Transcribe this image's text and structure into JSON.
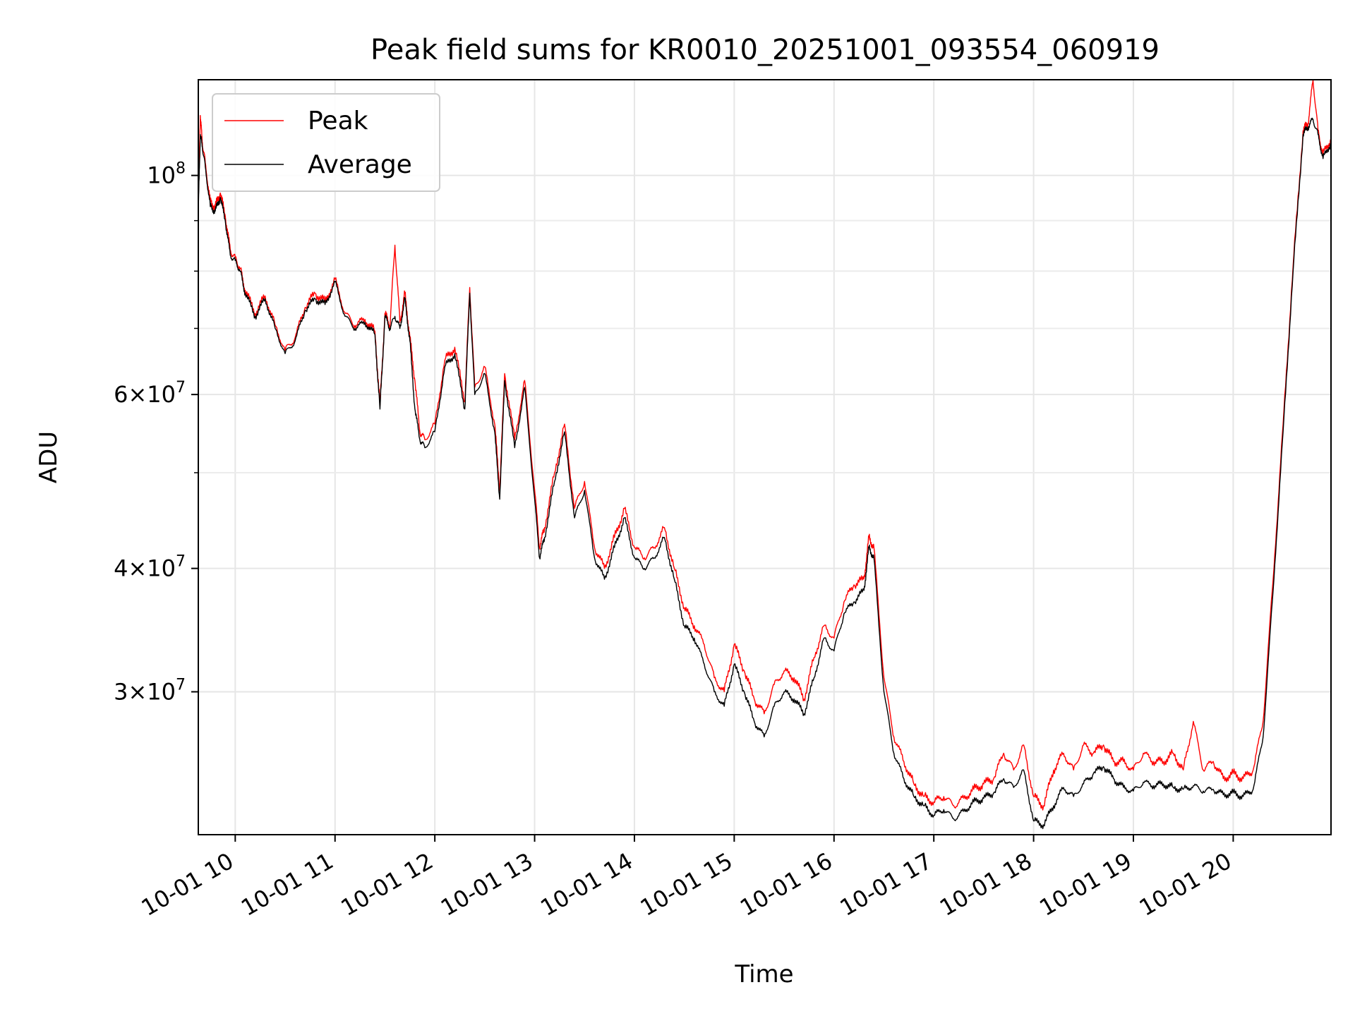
{
  "chart_data": {
    "type": "line",
    "title": "Peak field sums for KR0010_20251001_093554_060919",
    "xlabel": "Time",
    "ylabel": "ADU",
    "yscale": "log",
    "ylim": [
      21500000,
      125000000
    ],
    "xlim": [
      9.63,
      20.98
    ],
    "grid": true,
    "legend_position": "top-left",
    "x_ticks": [
      {
        "value": 10,
        "label": "10-01 10"
      },
      {
        "value": 11,
        "label": "10-01 11"
      },
      {
        "value": 12,
        "label": "10-01 12"
      },
      {
        "value": 13,
        "label": "10-01 13"
      },
      {
        "value": 14,
        "label": "10-01 14"
      },
      {
        "value": 15,
        "label": "10-01 15"
      },
      {
        "value": 16,
        "label": "10-01 16"
      },
      {
        "value": 17,
        "label": "10-01 17"
      },
      {
        "value": 18,
        "label": "10-01 18"
      },
      {
        "value": 19,
        "label": "10-01 19"
      },
      {
        "value": 20,
        "label": "10-01 20"
      }
    ],
    "y_ticks": [
      {
        "value": 30000000,
        "mant": "3",
        "exp": "7"
      },
      {
        "value": 40000000,
        "mant": "4",
        "exp": "7"
      },
      {
        "value": 60000000,
        "mant": "6",
        "exp": "7"
      },
      {
        "value": 100000000,
        "mant": "",
        "exp": "8"
      }
    ],
    "y_minor_ticks": [
      50000000,
      70000000,
      80000000,
      90000000
    ],
    "series": [
      {
        "name": "Peak",
        "color": "#ff0000"
      },
      {
        "name": "Average",
        "color": "#000000"
      }
    ],
    "x": [
      9.63,
      9.65,
      9.67,
      9.7,
      9.75,
      9.8,
      9.85,
      9.9,
      9.95,
      10.0,
      10.05,
      10.1,
      10.2,
      10.3,
      10.4,
      10.5,
      10.6,
      10.7,
      10.8,
      10.9,
      11.0,
      11.1,
      11.2,
      11.3,
      11.4,
      11.45,
      11.5,
      11.55,
      11.6,
      11.65,
      11.7,
      11.75,
      11.8,
      11.85,
      11.9,
      12.0,
      12.1,
      12.2,
      12.3,
      12.35,
      12.4,
      12.5,
      12.6,
      12.65,
      12.7,
      12.8,
      12.9,
      13.0,
      13.05,
      13.1,
      13.2,
      13.3,
      13.4,
      13.5,
      13.6,
      13.7,
      13.8,
      13.9,
      14.0,
      14.1,
      14.2,
      14.3,
      14.4,
      14.5,
      14.6,
      14.7,
      14.8,
      14.9,
      15.0,
      15.1,
      15.2,
      15.3,
      15.4,
      15.5,
      15.6,
      15.7,
      15.8,
      15.9,
      16.0,
      16.1,
      16.2,
      16.3,
      16.35,
      16.4,
      16.5,
      16.6,
      16.7,
      16.8,
      16.9,
      17.0,
      17.1,
      17.2,
      17.3,
      17.4,
      17.5,
      17.6,
      17.7,
      17.8,
      17.9,
      18.0,
      18.1,
      18.2,
      18.3,
      18.4,
      18.5,
      18.6,
      18.7,
      18.8,
      18.9,
      19.0,
      19.1,
      19.2,
      19.3,
      19.4,
      19.5,
      19.6,
      19.7,
      19.8,
      19.9,
      20.0,
      20.1,
      20.2,
      20.3,
      20.4,
      20.5,
      20.6,
      20.7,
      20.75,
      20.8,
      20.85,
      20.9,
      20.98
    ],
    "average": [
      92000000,
      110000000,
      107000000,
      102000000,
      93000000,
      92000000,
      95000000,
      90000000,
      83000000,
      82000000,
      80000000,
      76000000,
      72000000,
      75000000,
      70000000,
      66000000,
      68000000,
      73000000,
      75000000,
      74000000,
      78000000,
      72000000,
      70000000,
      71000000,
      69000000,
      58000000,
      72000000,
      70000000,
      72000000,
      70000000,
      75000000,
      68000000,
      58000000,
      54000000,
      53000000,
      55000000,
      64000000,
      66000000,
      58000000,
      76000000,
      60000000,
      63000000,
      55000000,
      47000000,
      62000000,
      53000000,
      61000000,
      47000000,
      41000000,
      43000000,
      49000000,
      55000000,
      45000000,
      48000000,
      41000000,
      39000000,
      42000000,
      45000000,
      41000000,
      40000000,
      41000000,
      43000000,
      39000000,
      35000000,
      34000000,
      32000000,
      30000000,
      29000000,
      32000000,
      30000000,
      28000000,
      27000000,
      29000000,
      30000000,
      29500000,
      28500000,
      31000000,
      34000000,
      33000000,
      36000000,
      37000000,
      38000000,
      42000000,
      41000000,
      30000000,
      26000000,
      24500000,
      23500000,
      23000000,
      22500000,
      22800000,
      22300000,
      22700000,
      23200000,
      23400000,
      23700000,
      24500000,
      24000000,
      25000000,
      22200000,
      22000000,
      23000000,
      24000000,
      23500000,
      24200000,
      24800000,
      25200000,
      24500000,
      24000000,
      23800000,
      24300000,
      24100000,
      24200000,
      24000000,
      23900000,
      24100000,
      23800000,
      23900000,
      23600000,
      23700000,
      23500000,
      23900000,
      27000000,
      38000000,
      55000000,
      80000000,
      110000000,
      112000000,
      114000000,
      110000000,
      104000000,
      108000000
    ],
    "peak": [
      94000000,
      115000000,
      108000000,
      103000000,
      94000000,
      93000000,
      96000000,
      91000000,
      84000000,
      82500000,
      80500000,
      76500000,
      72500000,
      75500000,
      70500000,
      66500000,
      68500000,
      73500000,
      76000000,
      74500000,
      78500000,
      72500000,
      70500000,
      71500000,
      69500000,
      58500000,
      72500000,
      70500000,
      85000000,
      71000000,
      76000000,
      68500000,
      62000000,
      55000000,
      54000000,
      56000000,
      65000000,
      67000000,
      59000000,
      77000000,
      61000000,
      64000000,
      56000000,
      48000000,
      63000000,
      54000000,
      62000000,
      48000000,
      42000000,
      44000000,
      50000000,
      56000000,
      46000000,
      49000000,
      42000000,
      40000000,
      43000000,
      46000000,
      42000000,
      41000000,
      42000000,
      44000000,
      40000000,
      36500000,
      35000000,
      33500000,
      31000000,
      30000000,
      33500000,
      31500000,
      29500000,
      28500000,
      30500000,
      31500000,
      31000000,
      29500000,
      32500000,
      35000000,
      34000000,
      37000000,
      38500000,
      39000000,
      43000000,
      42000000,
      31000000,
      27000000,
      25500000,
      24200000,
      23500000,
      23200000,
      23500000,
      23000000,
      23400000,
      23900000,
      24200000,
      24500000,
      26000000,
      25000000,
      26500000,
      23500000,
      23000000,
      25000000,
      26000000,
      25000000,
      26500000,
      26000000,
      26500000,
      25500000,
      25500000,
      25000000,
      26000000,
      25500000,
      25500000,
      26000000,
      25000000,
      28000000,
      25000000,
      25500000,
      24500000,
      24800000,
      24500000,
      25000000,
      28000000,
      39000000,
      56000000,
      81000000,
      111000000,
      113000000,
      125000000,
      111000000,
      105000000,
      109000000
    ]
  }
}
